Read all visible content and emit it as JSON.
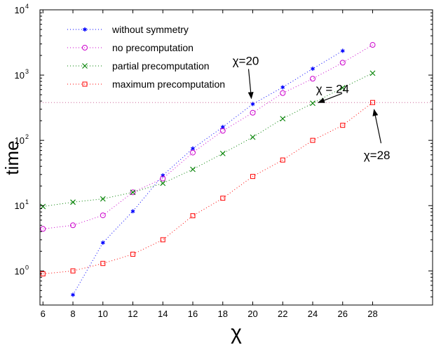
{
  "chart_data": {
    "type": "scatter",
    "title": "",
    "xlabel": "χ",
    "ylabel": "time",
    "x_scale": "linear",
    "y_scale": "log",
    "xlim": [
      5.8,
      32
    ],
    "ylim": [
      0.3,
      10000
    ],
    "x_ticks": [
      6,
      8,
      10,
      12,
      14,
      16,
      18,
      20,
      22,
      24,
      26,
      28
    ],
    "y_ticks": [
      {
        "value": 1,
        "base": "10",
        "exp": "0"
      },
      {
        "value": 10,
        "base": "10",
        "exp": "1"
      },
      {
        "value": 100,
        "base": "10",
        "exp": "2"
      },
      {
        "value": 1000,
        "base": "10",
        "exp": "3"
      },
      {
        "value": 10000,
        "base": "10",
        "exp": "4"
      }
    ],
    "grid": false,
    "legend_position": "top-left",
    "series": [
      {
        "name": "without symmetry",
        "color": "#0000ff",
        "marker": "asterisk",
        "x": [
          8,
          10,
          12,
          14,
          16,
          18,
          20,
          22,
          24,
          26
        ],
        "y": [
          0.43,
          2.7,
          8.2,
          29,
          75,
          160,
          360,
          650,
          1250,
          2350
        ]
      },
      {
        "name": "no precomputation",
        "color": "#cc00cc",
        "marker": "circle",
        "x": [
          6,
          8,
          10,
          12,
          14,
          16,
          18,
          20,
          22,
          24,
          26,
          28
        ],
        "y": [
          4.4,
          5.0,
          7.1,
          16,
          26,
          65,
          140,
          265,
          530,
          880,
          1550,
          2900
        ]
      },
      {
        "name": "partial precomputation",
        "color": "#008000",
        "marker": "cross",
        "x": [
          6,
          8,
          10,
          12,
          14,
          16,
          18,
          20,
          22,
          24,
          26,
          28
        ],
        "y": [
          9.7,
          11.3,
          12.7,
          16,
          22,
          36,
          63,
          112,
          215,
          370,
          640,
          1070
        ]
      },
      {
        "name": "maximum precomputation",
        "color": "#ff0000",
        "marker": "square",
        "x": [
          6,
          8,
          10,
          12,
          14,
          16,
          18,
          20,
          22,
          24,
          26,
          28
        ],
        "y": [
          0.9,
          1.0,
          1.3,
          1.8,
          3.0,
          7.0,
          13,
          28,
          50,
          100,
          170,
          380
        ]
      }
    ],
    "reference_line": {
      "y": 380,
      "color": "#cc6699"
    },
    "annotations": [
      {
        "text": "χ=20",
        "target_x": 20,
        "target_y": 360
      },
      {
        "text": "χ = 24",
        "target_x": 24,
        "target_y": 370
      },
      {
        "text": "χ=28",
        "target_x": 28,
        "target_y": 380
      }
    ]
  }
}
